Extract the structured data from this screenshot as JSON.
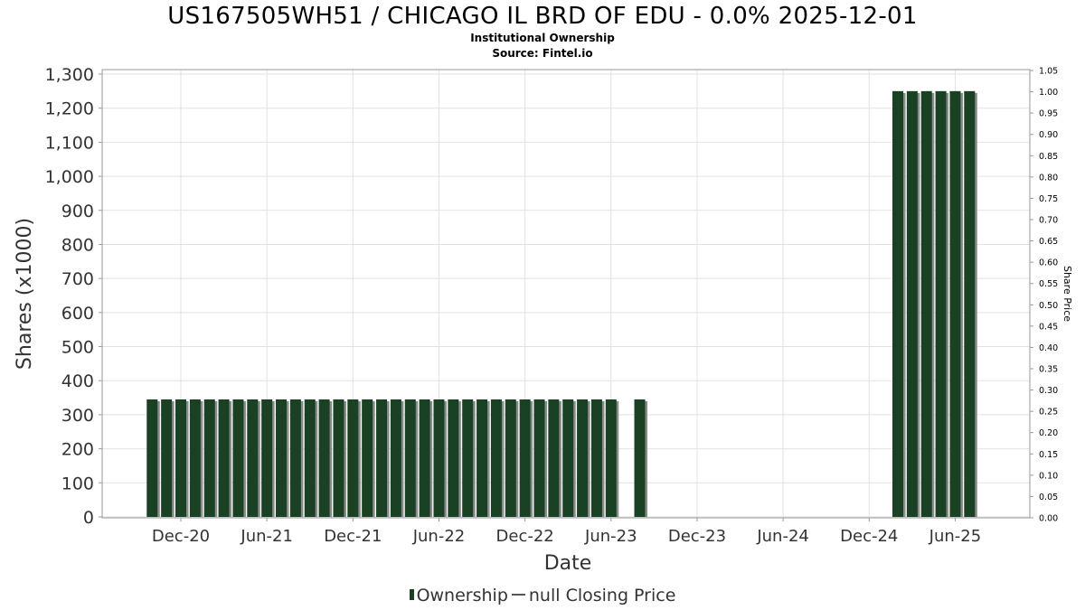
{
  "chart_data": {
    "type": "bar",
    "title": "US167505WH51 / CHICAGO IL BRD OF EDU - 0.0% 2025-12-01",
    "subtitle": "Institutional Ownership",
    "source": "Source: Fintel.io",
    "xlabel": "Date",
    "ylabel": "Shares (x1000)",
    "y2label": "Share Price",
    "ylim": [
      0,
      1300
    ],
    "y2lim": [
      0,
      1.05
    ],
    "yticks": [
      "0",
      "100",
      "200",
      "300",
      "400",
      "500",
      "600",
      "700",
      "800",
      "900",
      "1,000",
      "1,100",
      "1,200",
      "1,300"
    ],
    "y2ticks": [
      "0.00",
      "0.05",
      "0.10",
      "0.15",
      "0.20",
      "0.25",
      "0.30",
      "0.35",
      "0.40",
      "0.45",
      "0.50",
      "0.55",
      "0.60",
      "0.65",
      "0.70",
      "0.75",
      "0.80",
      "0.85",
      "0.90",
      "0.95",
      "1.00",
      "1.05"
    ],
    "xticks": [
      "Dec-20",
      "Jun-21",
      "Dec-21",
      "Jun-22",
      "Dec-22",
      "Jun-23",
      "Dec-23",
      "Jun-24",
      "Dec-24",
      "Jun-25"
    ],
    "grid": true,
    "legend_position": "bottom",
    "series": [
      {
        "name": "Ownership",
        "color": "#1a4123",
        "x": [
          "2020-10",
          "2020-11",
          "2020-12",
          "2021-01",
          "2021-02",
          "2021-03",
          "2021-04",
          "2021-05",
          "2021-06",
          "2021-07",
          "2021-08",
          "2021-09",
          "2021-10",
          "2021-11",
          "2021-12",
          "2022-01",
          "2022-02",
          "2022-03",
          "2022-04",
          "2022-05",
          "2022-06",
          "2022-07",
          "2022-08",
          "2022-09",
          "2022-10",
          "2022-11",
          "2022-12",
          "2023-01",
          "2023-02",
          "2023-03",
          "2023-04",
          "2023-05",
          "2023-06",
          "2023-08",
          "2025-02",
          "2025-03",
          "2025-04",
          "2025-05",
          "2025-06",
          "2025-07"
        ],
        "values": [
          345,
          345,
          345,
          345,
          345,
          345,
          345,
          345,
          345,
          345,
          345,
          345,
          345,
          345,
          345,
          345,
          345,
          345,
          345,
          345,
          345,
          345,
          345,
          345,
          345,
          345,
          345,
          345,
          345,
          345,
          345,
          345,
          345,
          345,
          1250,
          1250,
          1250,
          1250,
          1250,
          1250
        ]
      },
      {
        "name": "null Closing Price",
        "color": "#555555",
        "values": []
      }
    ]
  }
}
